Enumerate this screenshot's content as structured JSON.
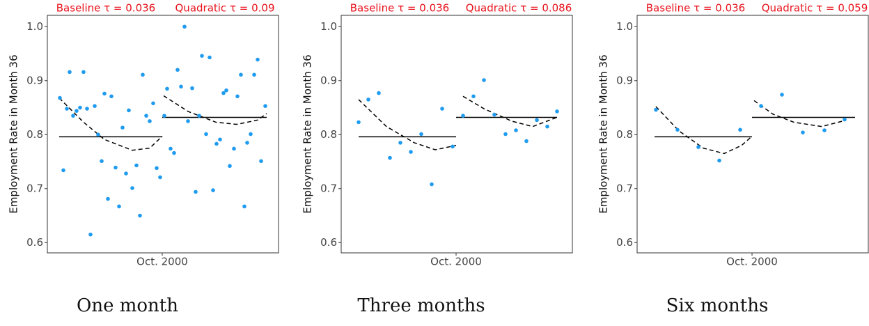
{
  "chart_data": [
    {
      "type": "scatter",
      "baseline_label": "Baseline τ = 0.036",
      "quadratic_label": "Quadratic τ = 0.09",
      "y_label": "Employment Rate in Month  36",
      "caption": "One month",
      "xlim": [
        -165,
        167
      ],
      "xticks": [
        {
          "value": 0,
          "label": "Oct. 2000"
        }
      ],
      "ylim": [
        0.581,
        1.021
      ],
      "yticks": [
        0.6,
        0.7,
        0.8,
        0.9,
        {
          "value": 1,
          "label": "1.0"
        }
      ],
      "series": [
        {
          "color": "#1f9bef",
          "x": [
            -147,
            -142,
            -137,
            -133,
            -128,
            -123,
            -118,
            -113,
            -108,
            -103,
            -97,
            -92,
            -87,
            -83,
            -78,
            -73,
            -67,
            -62,
            -57,
            -52,
            -48,
            -43,
            -37,
            -32,
            -28,
            -23,
            -18,
            -13,
            -8,
            -3,
            3,
            7,
            12,
            17,
            22,
            27,
            32,
            37,
            43,
            48,
            53,
            57,
            63,
            68,
            73,
            78,
            83,
            88,
            92,
            97,
            103,
            108,
            113,
            118,
            122,
            127,
            132,
            137,
            142,
            148
          ],
          "values": [
            0.868,
            0.734,
            0.848,
            0.916,
            0.835,
            0.844,
            0.85,
            0.916,
            0.848,
            0.615,
            0.853,
            0.8,
            0.751,
            0.876,
            0.681,
            0.871,
            0.739,
            0.667,
            0.813,
            0.728,
            0.845,
            0.701,
            0.743,
            0.65,
            0.911,
            0.835,
            0.825,
            0.858,
            0.738,
            0.721,
            0.835,
            0.885,
            0.774,
            0.766,
            0.92,
            0.889,
            1.0,
            0.825,
            0.886,
            0.694,
            0.835,
            0.946,
            0.801,
            0.943,
            0.697,
            0.783,
            0.791,
            0.877,
            0.882,
            0.742,
            0.774,
            0.871,
            0.911,
            0.667,
            0.785,
            0.801,
            0.911,
            0.939,
            0.751,
            0.853
          ]
        }
      ],
      "lines": [
        {
          "dash": false,
          "x": [
            -148,
            0
          ],
          "values": [
            0.796,
            0.796
          ]
        },
        {
          "dash": false,
          "x": [
            0,
            150
          ],
          "values": [
            0.832,
            0.832
          ]
        },
        {
          "dash": true,
          "x": [
            -148,
            -113,
            -83,
            -43,
            -18,
            0
          ],
          "values": [
            0.868,
            0.823,
            0.791,
            0.771,
            0.775,
            0.797
          ]
        },
        {
          "dash": true,
          "x": [
            2,
            37,
            77,
            107,
            137,
            150
          ],
          "values": [
            0.872,
            0.843,
            0.823,
            0.819,
            0.827,
            0.839
          ]
        }
      ]
    },
    {
      "type": "scatter",
      "baseline_label": "Baseline τ = 0.036",
      "quadratic_label": "Quadratic τ = 0.086",
      "y_label": "Employment Rate in Month  36",
      "caption": "Three months",
      "xlim": [
        -165,
        167
      ],
      "xticks": [
        {
          "value": 0,
          "label": "Oct. 2000"
        }
      ],
      "ylim": [
        0.581,
        1.021
      ],
      "yticks": [
        0.6,
        0.7,
        0.8,
        0.9,
        {
          "value": 1,
          "label": "1.0"
        }
      ],
      "series": [
        {
          "color": "#1f9bef",
          "x": [
            -140,
            -126,
            -111,
            -95,
            -80,
            -65,
            -50,
            -35,
            -20,
            -5,
            10,
            25,
            40,
            55,
            71,
            86,
            101,
            116,
            131,
            145
          ],
          "values": [
            0.823,
            0.865,
            0.877,
            0.757,
            0.785,
            0.768,
            0.801,
            0.708,
            0.848,
            0.778,
            0.835,
            0.871,
            0.901,
            0.837,
            0.801,
            0.808,
            0.788,
            0.827,
            0.815,
            0.843
          ]
        }
      ],
      "lines": [
        {
          "dash": false,
          "x": [
            -140,
            0
          ],
          "values": [
            0.796,
            0.796
          ]
        },
        {
          "dash": false,
          "x": [
            0,
            145
          ],
          "values": [
            0.832,
            0.832
          ]
        },
        {
          "dash": true,
          "x": [
            -140,
            -100,
            -60,
            -30,
            0
          ],
          "values": [
            0.865,
            0.815,
            0.785,
            0.772,
            0.78
          ]
        },
        {
          "dash": true,
          "x": [
            10,
            40,
            80,
            110,
            145
          ],
          "values": [
            0.871,
            0.848,
            0.825,
            0.815,
            0.832
          ]
        }
      ]
    },
    {
      "type": "scatter",
      "baseline_label": "Baseline τ = 0.036",
      "quadratic_label": "Quadratic τ = 0.059",
      "y_label": "Employment Rate in Month  36",
      "caption": "Six months",
      "xlim": [
        -165,
        167
      ],
      "xticks": [
        {
          "value": 0,
          "label": "Oct. 2000"
        }
      ],
      "ylim": [
        0.581,
        1.021
      ],
      "yticks": [
        0.6,
        0.7,
        0.8,
        0.9,
        {
          "value": 1,
          "label": "1.0"
        }
      ],
      "series": [
        {
          "color": "#1f9bef",
          "x": [
            -138,
            -107,
            -77,
            -47,
            -17,
            13,
            43,
            73,
            104,
            133
          ],
          "values": [
            0.846,
            0.809,
            0.777,
            0.752,
            0.809,
            0.853,
            0.874,
            0.804,
            0.808,
            0.828
          ]
        }
      ],
      "lines": [
        {
          "dash": false,
          "x": [
            -140,
            0
          ],
          "values": [
            0.796,
            0.796
          ]
        },
        {
          "dash": false,
          "x": [
            0,
            148
          ],
          "values": [
            0.832,
            0.832
          ]
        },
        {
          "dash": true,
          "x": [
            -138,
            -105,
            -70,
            -40,
            -15,
            0
          ],
          "values": [
            0.852,
            0.807,
            0.775,
            0.765,
            0.78,
            0.797
          ]
        },
        {
          "dash": true,
          "x": [
            3,
            30,
            60,
            100,
            133
          ],
          "values": [
            0.863,
            0.838,
            0.823,
            0.815,
            0.826
          ]
        }
      ]
    }
  ]
}
